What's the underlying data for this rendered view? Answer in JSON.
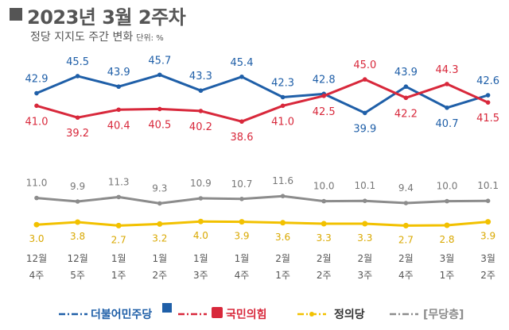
{
  "header": {
    "title": "2023년 3월 2주차",
    "subtitle": "정당 지지도 주간 변화",
    "unit": "단위: %"
  },
  "colors": {
    "minjoo": "#1f5fa8",
    "ppp": "#d8283b",
    "justice": "#f2c100",
    "none": "#8c8c8c"
  },
  "chart_data": {
    "type": "line",
    "categories": [
      [
        "12월",
        "4주"
      ],
      [
        "12월",
        "5주"
      ],
      [
        "1월",
        "1주"
      ],
      [
        "1월",
        "2주"
      ],
      [
        "1월",
        "3주"
      ],
      [
        "1월",
        "4주"
      ],
      [
        "2월",
        "1주"
      ],
      [
        "2월",
        "2주"
      ],
      [
        "2월",
        "3주"
      ],
      [
        "2월",
        "4주"
      ],
      [
        "3월",
        "1주"
      ],
      [
        "3월",
        "2주"
      ]
    ],
    "series": [
      {
        "name": "더불어민주당",
        "color": "#1f5fa8",
        "values": [
          42.9,
          45.5,
          43.9,
          45.7,
          43.3,
          45.4,
          42.3,
          42.8,
          39.9,
          43.9,
          40.7,
          42.6
        ]
      },
      {
        "name": "국민의힘",
        "color": "#d8283b",
        "values": [
          41.0,
          39.2,
          40.4,
          40.5,
          40.2,
          38.6,
          41.0,
          42.5,
          45.0,
          42.2,
          44.3,
          41.5
        ]
      },
      {
        "name": "정의당",
        "color": "#f2c100",
        "values": [
          3.0,
          3.8,
          2.7,
          3.2,
          4.0,
          3.9,
          3.6,
          3.3,
          3.3,
          2.7,
          2.8,
          3.9
        ]
      },
      {
        "name": "무당층",
        "color": "#8c8c8c",
        "values": [
          11.0,
          9.9,
          11.3,
          9.3,
          10.9,
          10.7,
          11.6,
          10.0,
          10.1,
          9.4,
          10.0,
          10.1
        ]
      }
    ],
    "labels": {
      "minjoo": [
        "42.9",
        "45.5",
        "43.9",
        "45.7",
        "43.3",
        "45.4",
        "42.3",
        "42.8",
        "39.9",
        "43.9",
        "40.7",
        "42.6"
      ],
      "ppp": [
        "41.0",
        "39.2",
        "40.4",
        "40.5",
        "40.2",
        "38.6",
        "41.0",
        "42.5",
        "45.0",
        "42.2",
        "44.3",
        "41.5"
      ],
      "justice": [
        "3.0",
        "3.8",
        "2.7",
        "3.2",
        "4.0",
        "3.9",
        "3.6",
        "3.3",
        "3.3",
        "2.7",
        "2.8",
        "3.9"
      ],
      "none": [
        "11.0",
        "9.9",
        "11.3",
        "9.3",
        "10.9",
        "10.7",
        "11.6",
        "10.0",
        "10.1",
        "9.4",
        "10.0",
        "10.1"
      ]
    },
    "grid": false
  },
  "legend": {
    "minjoo": "더불어민주당",
    "ppp": "국민의힘",
    "justice": "정의당",
    "none": "[무당층]"
  }
}
